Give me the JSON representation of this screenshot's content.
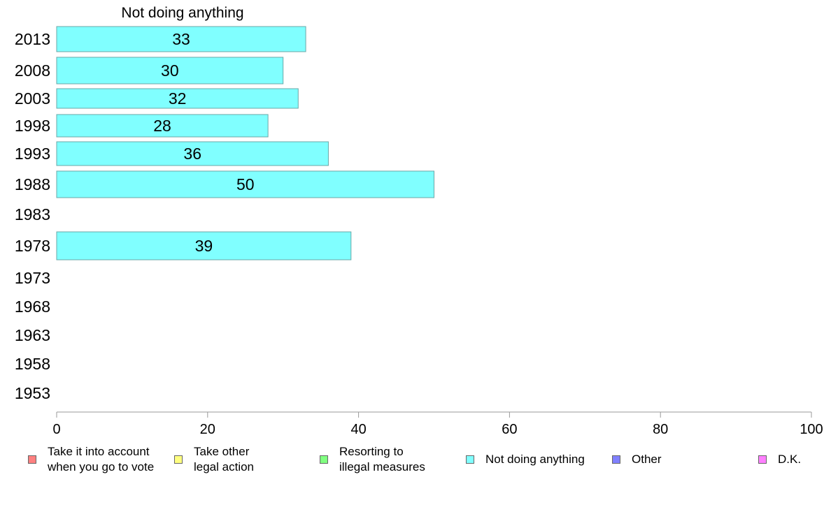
{
  "chart_data": {
    "type": "bar",
    "orientation": "horizontal",
    "title": "Not doing anything",
    "categories": [
      "2013",
      "2008",
      "2003",
      "1998",
      "1993",
      "1988",
      "1983",
      "1978",
      "1973",
      "1968",
      "1963",
      "1958",
      "1953"
    ],
    "series": [
      {
        "name": "Not doing anything",
        "color": "#80ffff",
        "values": [
          33,
          30,
          32,
          28,
          36,
          50,
          null,
          39,
          null,
          null,
          null,
          null,
          null
        ]
      }
    ],
    "xlim": [
      0,
      100
    ],
    "xticks": [
      "0",
      "20",
      "40",
      "60",
      "80",
      "100"
    ],
    "grid": false,
    "legend_position": "bottom",
    "legend": [
      {
        "label": "Take it into account\nwhen you go to vote",
        "color": "#ff8080"
      },
      {
        "label": "Take other\nlegal action",
        "color": "#ffff80"
      },
      {
        "label": "Resorting to\nillegal measures",
        "color": "#80ff80"
      },
      {
        "label": "Not doing anything",
        "color": "#80ffff"
      },
      {
        "label": "Other",
        "color": "#8080ff"
      },
      {
        "label": "D.K.",
        "color": "#ff80ff"
      }
    ]
  }
}
